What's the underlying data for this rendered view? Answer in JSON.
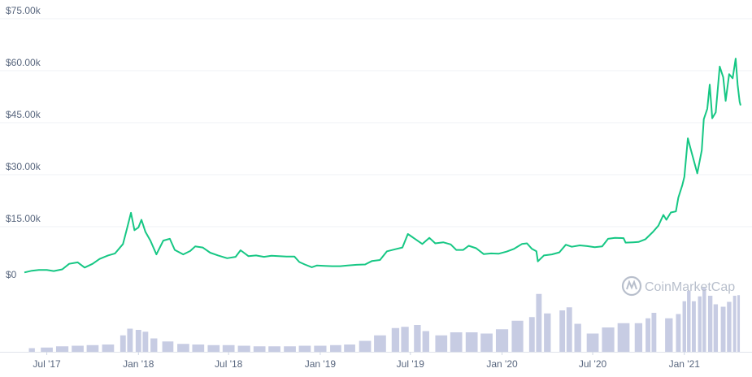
{
  "watermark": "CoinMarketCap",
  "colors": {
    "price_line": "#16c784",
    "volume_bar": "#c7cce3",
    "gridline": "#eff2f5",
    "axis_text": "#58667e",
    "watermark": "#b8bfcc"
  },
  "chart_data": {
    "type": "line",
    "title": "",
    "xlabel": "",
    "ylabel": "",
    "ylim": [
      0,
      75000
    ],
    "y_ticks": [
      "$0",
      "$15.00k",
      "$30.00k",
      "$45.00k",
      "$60.00k",
      "$75.00k"
    ],
    "y_tick_values": [
      0,
      15000,
      30000,
      45000,
      60000,
      75000
    ],
    "x_ticks": [
      "Jul '17",
      "Jan '18",
      "Jul '18",
      "Jan '19",
      "Jul '19",
      "Jan '20",
      "Jul '20",
      "Jan '21"
    ],
    "x_tick_dates": [
      "2017-07-01",
      "2018-01-01",
      "2018-07-01",
      "2019-01-01",
      "2019-07-01",
      "2020-01-01",
      "2020-07-01",
      "2021-01-01"
    ],
    "xlim": [
      "2017-05-17",
      "2021-04-24"
    ],
    "grid": true,
    "series": [
      {
        "values": [
          [
            "2017-05-17",
            1800
          ],
          [
            "2017-06-01",
            2300
          ],
          [
            "2017-06-15",
            2500
          ],
          [
            "2017-07-01",
            2500
          ],
          [
            "2017-07-15",
            2200
          ],
          [
            "2017-08-01",
            2700
          ],
          [
            "2017-08-15",
            4300
          ],
          [
            "2017-09-01",
            4700
          ],
          [
            "2017-09-15",
            3200
          ],
          [
            "2017-10-01",
            4300
          ],
          [
            "2017-10-15",
            5700
          ],
          [
            "2017-11-01",
            6700
          ],
          [
            "2017-11-15",
            7300
          ],
          [
            "2017-12-01",
            10000
          ],
          [
            "2017-12-10",
            15000
          ],
          [
            "2017-12-17",
            19000
          ],
          [
            "2017-12-24",
            14000
          ],
          [
            "2018-01-01",
            14800
          ],
          [
            "2018-01-07",
            17000
          ],
          [
            "2018-01-15",
            13500
          ],
          [
            "2018-01-25",
            11000
          ],
          [
            "2018-02-06",
            7000
          ],
          [
            "2018-02-20",
            11000
          ],
          [
            "2018-03-05",
            11500
          ],
          [
            "2018-03-15",
            8300
          ],
          [
            "2018-04-01",
            7000
          ],
          [
            "2018-04-15",
            8000
          ],
          [
            "2018-04-25",
            9300
          ],
          [
            "2018-05-10",
            9000
          ],
          [
            "2018-05-25",
            7500
          ],
          [
            "2018-06-10",
            6700
          ],
          [
            "2018-06-28",
            5900
          ],
          [
            "2018-07-15",
            6300
          ],
          [
            "2018-07-25",
            8200
          ],
          [
            "2018-08-10",
            6500
          ],
          [
            "2018-08-25",
            6700
          ],
          [
            "2018-09-10",
            6300
          ],
          [
            "2018-09-25",
            6600
          ],
          [
            "2018-10-10",
            6500
          ],
          [
            "2018-10-25",
            6400
          ],
          [
            "2018-11-10",
            6400
          ],
          [
            "2018-11-20",
            4800
          ],
          [
            "2018-12-01",
            4100
          ],
          [
            "2018-12-15",
            3300
          ],
          [
            "2018-12-25",
            3800
          ],
          [
            "2019-01-10",
            3700
          ],
          [
            "2019-01-25",
            3600
          ],
          [
            "2019-02-10",
            3600
          ],
          [
            "2019-02-25",
            3800
          ],
          [
            "2019-03-15",
            4000
          ],
          [
            "2019-04-01",
            4100
          ],
          [
            "2019-04-15",
            5100
          ],
          [
            "2019-05-01",
            5400
          ],
          [
            "2019-05-15",
            7900
          ],
          [
            "2019-06-01",
            8500
          ],
          [
            "2019-06-15",
            9000
          ],
          [
            "2019-06-26",
            12900
          ],
          [
            "2019-07-10",
            11500
          ],
          [
            "2019-07-25",
            10000
          ],
          [
            "2019-08-08",
            11800
          ],
          [
            "2019-08-20",
            10200
          ],
          [
            "2019-09-05",
            10500
          ],
          [
            "2019-09-20",
            9900
          ],
          [
            "2019-10-01",
            8300
          ],
          [
            "2019-10-15",
            8300
          ],
          [
            "2019-10-26",
            9500
          ],
          [
            "2019-11-10",
            8800
          ],
          [
            "2019-11-25",
            7100
          ],
          [
            "2019-12-10",
            7300
          ],
          [
            "2019-12-25",
            7200
          ],
          [
            "2020-01-10",
            7800
          ],
          [
            "2020-01-25",
            8600
          ],
          [
            "2020-02-10",
            10000
          ],
          [
            "2020-02-20",
            10200
          ],
          [
            "2020-03-01",
            8600
          ],
          [
            "2020-03-10",
            7900
          ],
          [
            "2020-03-13",
            5000
          ],
          [
            "2020-03-25",
            6700
          ],
          [
            "2020-04-10",
            7000
          ],
          [
            "2020-04-25",
            7600
          ],
          [
            "2020-05-08",
            9800
          ],
          [
            "2020-05-20",
            9200
          ],
          [
            "2020-06-05",
            9600
          ],
          [
            "2020-06-20",
            9400
          ],
          [
            "2020-07-05",
            9100
          ],
          [
            "2020-07-20",
            9300
          ],
          [
            "2020-08-01",
            11500
          ],
          [
            "2020-08-15",
            11800
          ],
          [
            "2020-09-01",
            11700
          ],
          [
            "2020-09-05",
            10400
          ],
          [
            "2020-09-20",
            10500
          ],
          [
            "2020-10-01",
            10600
          ],
          [
            "2020-10-15",
            11400
          ],
          [
            "2020-10-30",
            13500
          ],
          [
            "2020-11-10",
            15300
          ],
          [
            "2020-11-20",
            18400
          ],
          [
            "2020-11-26",
            17000
          ],
          [
            "2020-12-05",
            19100
          ],
          [
            "2020-12-15",
            19400
          ],
          [
            "2020-12-20",
            23400
          ],
          [
            "2020-12-28",
            27000
          ],
          [
            "2021-01-01",
            29400
          ],
          [
            "2021-01-08",
            40500
          ],
          [
            "2021-01-14",
            37300
          ],
          [
            "2021-01-27",
            30400
          ],
          [
            "2021-02-05",
            37000
          ],
          [
            "2021-02-09",
            46000
          ],
          [
            "2021-02-16",
            49000
          ],
          [
            "2021-02-21",
            56000
          ],
          [
            "2021-02-26",
            46300
          ],
          [
            "2021-03-05",
            48000
          ],
          [
            "2021-03-13",
            61200
          ],
          [
            "2021-03-20",
            58100
          ],
          [
            "2021-03-25",
            51300
          ],
          [
            "2021-04-01",
            59000
          ],
          [
            "2021-04-08",
            57800
          ],
          [
            "2021-04-14",
            63500
          ],
          [
            "2021-04-18",
            56000
          ],
          [
            "2021-04-22",
            51000
          ],
          [
            "2021-04-24",
            50000
          ]
        ]
      }
    ],
    "volume": {
      "type": "bar",
      "values": [
        [
          "2017-06-01",
          0.06
        ],
        [
          "2017-07-01",
          0.07
        ],
        [
          "2017-08-01",
          0.09
        ],
        [
          "2017-09-01",
          0.1
        ],
        [
          "2017-10-01",
          0.11
        ],
        [
          "2017-11-01",
          0.12
        ],
        [
          "2017-12-01",
          0.27
        ],
        [
          "2017-12-15",
          0.38
        ],
        [
          "2018-01-01",
          0.36
        ],
        [
          "2018-01-15",
          0.33
        ],
        [
          "2018-02-01",
          0.22
        ],
        [
          "2018-03-01",
          0.17
        ],
        [
          "2018-04-01",
          0.13
        ],
        [
          "2018-05-01",
          0.12
        ],
        [
          "2018-06-01",
          0.11
        ],
        [
          "2018-07-01",
          0.11
        ],
        [
          "2018-08-01",
          0.1
        ],
        [
          "2018-09-01",
          0.09
        ],
        [
          "2018-10-01",
          0.09
        ],
        [
          "2018-11-01",
          0.09
        ],
        [
          "2018-12-01",
          0.1
        ],
        [
          "2019-01-01",
          0.1
        ],
        [
          "2019-02-01",
          0.11
        ],
        [
          "2019-03-01",
          0.12
        ],
        [
          "2019-04-01",
          0.18
        ],
        [
          "2019-05-01",
          0.27
        ],
        [
          "2019-06-01",
          0.39
        ],
        [
          "2019-06-20",
          0.41
        ],
        [
          "2019-07-15",
          0.44
        ],
        [
          "2019-08-01",
          0.34
        ],
        [
          "2019-09-01",
          0.27
        ],
        [
          "2019-10-01",
          0.32
        ],
        [
          "2019-11-01",
          0.32
        ],
        [
          "2019-12-01",
          0.3
        ],
        [
          "2020-01-01",
          0.37
        ],
        [
          "2020-02-01",
          0.51
        ],
        [
          "2020-03-01",
          0.57
        ],
        [
          "2020-03-15",
          0.95
        ],
        [
          "2020-04-01",
          0.63
        ],
        [
          "2020-05-01",
          0.68
        ],
        [
          "2020-05-15",
          0.73
        ],
        [
          "2020-06-01",
          0.46
        ],
        [
          "2020-07-01",
          0.3
        ],
        [
          "2020-08-01",
          0.4
        ],
        [
          "2020-09-01",
          0.47
        ],
        [
          "2020-10-01",
          0.47
        ],
        [
          "2020-10-20",
          0.55
        ],
        [
          "2020-11-01",
          0.64
        ],
        [
          "2020-12-01",
          0.55
        ],
        [
          "2020-12-20",
          0.62
        ],
        [
          "2021-01-01",
          0.83
        ],
        [
          "2021-01-10",
          1.0
        ],
        [
          "2021-01-20",
          0.83
        ],
        [
          "2021-02-01",
          0.91
        ],
        [
          "2021-02-10",
          1.05
        ],
        [
          "2021-02-22",
          0.92
        ],
        [
          "2021-03-05",
          0.78
        ],
        [
          "2021-03-20",
          0.74
        ],
        [
          "2021-04-01",
          0.82
        ],
        [
          "2021-04-12",
          0.92
        ],
        [
          "2021-04-20",
          0.93
        ]
      ]
    }
  }
}
